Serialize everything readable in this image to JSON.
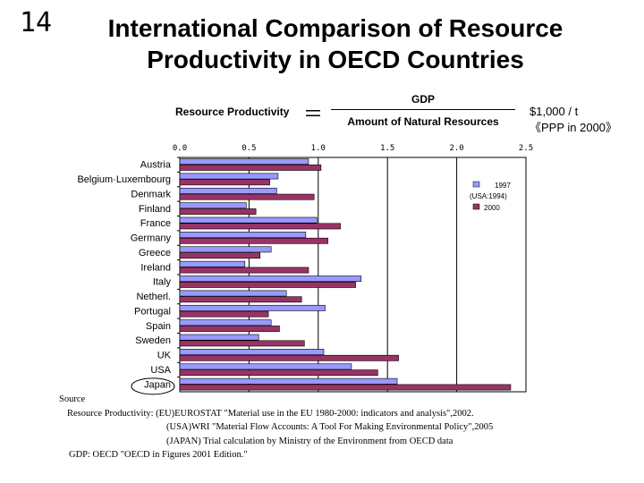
{
  "slide_number": "14",
  "title_line1": "International Comparison of Resource",
  "title_line2": "Productivity in OECD Countries",
  "formula": {
    "left": "Resource Productivity",
    "equals": "＝",
    "numerator": "GDP",
    "denominator": "Amount of Natural Resources"
  },
  "unit": {
    "line1": "$1,000 / t",
    "line2": "《PPP in 2000》"
  },
  "source": {
    "heading": "Source",
    "line1": "Resource Productivity: (EU)EUROSTAT \"Material use in the EU 1980-2000: indicators and analysis\",2002.",
    "line2": "(USA)WRI \"Material Flow Accounts: A Tool For Making Environmental Policy\",2005",
    "line3": "(JAPAN) Trial calculation by Ministry of the Environment from OECD data",
    "line4": "GDP: OECD \"OECD in Figures 2001 Edition.\""
  },
  "chart_data": {
    "type": "bar",
    "orientation": "horizontal",
    "categories": [
      "Austria",
      "Belgium·Luxembourg",
      "Denmark",
      "Finland",
      "France",
      "Germany",
      "Greece",
      "Ireland",
      "Italy",
      "Netherl.",
      "Portugal",
      "Spain",
      "Sweden",
      "UK",
      "USA",
      "Japan"
    ],
    "series": [
      {
        "name": "1997",
        "color": "#9999ff",
        "values": [
          0.93,
          0.71,
          0.7,
          0.48,
          0.99,
          0.91,
          0.66,
          0.47,
          1.31,
          0.77,
          1.05,
          0.66,
          0.57,
          1.04,
          1.24,
          1.57
        ]
      },
      {
        "name": "2000",
        "color": "#993366",
        "values": [
          1.02,
          0.65,
          0.97,
          0.55,
          1.16,
          1.07,
          0.58,
          0.93,
          1.27,
          0.88,
          0.64,
          0.72,
          0.9,
          1.58,
          1.43,
          2.39
        ]
      }
    ],
    "legend_note": "(USA:1994)",
    "xlim": [
      0,
      2.5
    ],
    "ticks": [
      "0.0",
      "0.5",
      "1.0",
      "1.5",
      "2.0",
      "2.5"
    ],
    "tick_values": [
      0,
      0.5,
      1.0,
      1.5,
      2.0,
      2.5
    ],
    "highlighted_category": "Japan",
    "grid": true,
    "legend_position": "right"
  }
}
